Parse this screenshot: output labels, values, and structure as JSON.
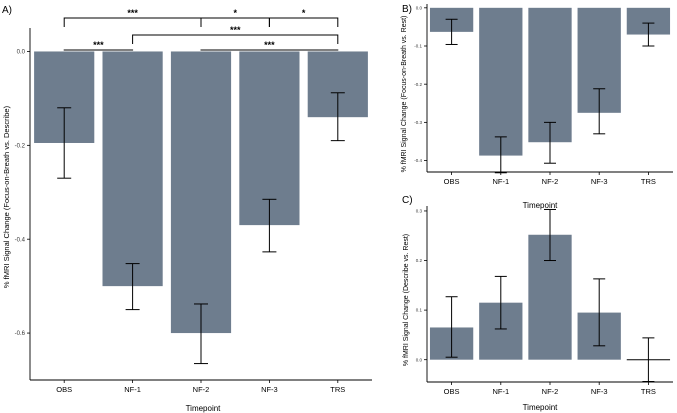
{
  "chart_data": [
    {
      "panel": "A)",
      "type": "bar",
      "categories": [
        "OBS",
        "NF-1",
        "NF-2",
        "NF-3",
        "TRS"
      ],
      "values": [
        -0.195,
        -0.5,
        -0.6,
        -0.37,
        -0.14
      ],
      "error_upper": [
        -0.12,
        -0.452,
        -0.538,
        -0.315,
        -0.088
      ],
      "error_lower": [
        -0.27,
        -0.55,
        -0.665,
        -0.427,
        -0.19
      ],
      "xlabel": "Timepoint",
      "ylabel": "% fMRI Signal Change (Focus-on-Breath vs. Describe)",
      "ylim": [
        -0.7,
        0.05
      ],
      "yticks": [
        0.0,
        -0.2,
        -0.4,
        -0.6
      ],
      "ytick_labels": [
        "0.0",
        "-0.2",
        "-0.4",
        "-0.6"
      ],
      "significance": [
        {
          "from": 0,
          "to": 2,
          "label": "***"
        },
        {
          "from": 2,
          "to": 3,
          "label": "*"
        },
        {
          "from": 3,
          "to": 4,
          "label": "*"
        },
        {
          "from": 1,
          "to": 4,
          "label": "***"
        },
        {
          "from": 0,
          "to": 1,
          "label": "***"
        },
        {
          "from": 2,
          "to": 4,
          "label": "***"
        }
      ]
    },
    {
      "panel": "B)",
      "type": "bar",
      "categories": [
        "OBS",
        "NF-1",
        "NF-2",
        "NF-3",
        "TRS"
      ],
      "values": [
        -0.063,
        -0.387,
        -0.352,
        -0.275,
        -0.07
      ],
      "error_upper": [
        -0.03,
        -0.338,
        -0.3,
        -0.212,
        -0.04
      ],
      "error_lower": [
        -0.096,
        -0.432,
        -0.407,
        -0.33,
        -0.1
      ],
      "xlabel": "Timepoint",
      "ylabel": "% fMRI Signal Change (Focus-on-Breath vs. Rest)",
      "ylim": [
        -0.43,
        0.01
      ],
      "yticks": [
        0.0,
        -0.1,
        -0.2,
        -0.3,
        -0.4
      ],
      "ytick_labels": [
        "0.0",
        "-0.1",
        "-0.2",
        "-0.3",
        "-0.4"
      ]
    },
    {
      "panel": "C)",
      "type": "bar",
      "categories": [
        "OBS",
        "NF-1",
        "NF-2",
        "NF-3",
        "TRS"
      ],
      "values": [
        0.065,
        0.115,
        0.252,
        0.095,
        0.0
      ],
      "error_upper": [
        0.127,
        0.168,
        0.303,
        0.163,
        0.044
      ],
      "error_lower": [
        0.005,
        0.062,
        0.2,
        0.028,
        -0.044
      ],
      "xlabel": "Timepoint",
      "ylabel": "% fMRI Signal Change (Describe vs. Rest)",
      "ylim": [
        -0.045,
        0.31
      ],
      "yticks": [
        0.0,
        0.1,
        0.2,
        0.3
      ],
      "ytick_labels": [
        "0.0",
        "0.1",
        "0.2",
        "0.3"
      ]
    }
  ]
}
